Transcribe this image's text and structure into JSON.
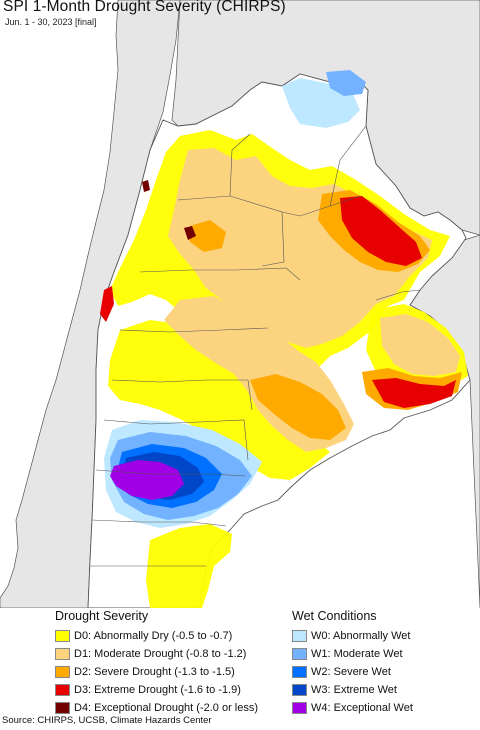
{
  "title": "SPI 1-Month Drought Severity (CHIRPS)",
  "subtitle": "Jun. 1 - 30, 2023 [final]",
  "legend": {
    "drought": {
      "heading": "Drought Severity",
      "items": [
        {
          "label": "D0: Abnormally Dry (-0.5 to -0.7)",
          "color": "#ffff00"
        },
        {
          "label": "D1: Moderate Drought (-0.8 to -1.2)",
          "color": "#fcd37f"
        },
        {
          "label": "D2: Severe Drought (-1.3 to -1.5)",
          "color": "#ffaa00"
        },
        {
          "label": "D3: Extreme Drought (-1.6 to -1.9)",
          "color": "#e60000"
        },
        {
          "label": "D4: Exceptional Drought (-2.0 or less)",
          "color": "#730000"
        }
      ]
    },
    "wet": {
      "heading": "Wet Conditions",
      "items": [
        {
          "label": "W0: Abnormally Wet",
          "color": "#bee8ff"
        },
        {
          "label": "W1: Moderate Wet",
          "color": "#73b2ff"
        },
        {
          "label": "W2: Severe Wet",
          "color": "#0070ff"
        },
        {
          "label": "W3: Extreme Wet",
          "color": "#0046c8"
        },
        {
          "label": "W4: Exceptional Wet",
          "color": "#a100e6"
        }
      ]
    }
  },
  "map": {
    "ocean_color": "#ffffff",
    "land_color": "#ffffff",
    "neighbor_color": "#e6e6e6"
  },
  "source": "Source: CHIRPS, UCSB, Climate Hazards Center"
}
